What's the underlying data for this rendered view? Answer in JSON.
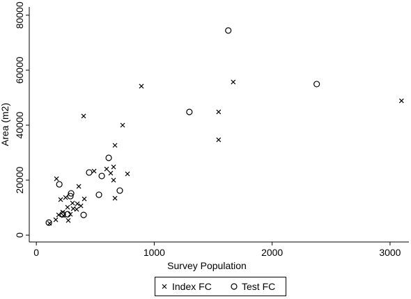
{
  "chart_data": {
    "type": "scatter",
    "xlabel": "Survey Population",
    "ylabel": "Area (m2)",
    "xlim": [
      -60,
      3160
    ],
    "ylim": [
      -2500,
      83000
    ],
    "xticks": [
      0,
      1000,
      2000,
      3000
    ],
    "yticks": [
      0,
      20000,
      40000,
      60000,
      80000
    ],
    "grid": false,
    "legend": "bottom",
    "series": [
      {
        "name": "Index FC",
        "color": "#000000",
        "marker": "x",
        "x": [
          891,
          1670,
          3097,
          1546,
          1546,
          401,
          732,
          667,
          171,
          360,
          655,
          596,
          631,
          490,
          773,
          655,
          667,
          206,
          248,
          407,
          307,
          348,
          313,
          265,
          342,
          224,
          189,
          230,
          289,
          271,
          165,
          112,
          378
        ],
        "values": [
          54177,
          55700,
          48860,
          44810,
          34680,
          43290,
          40000,
          32660,
          20500,
          17720,
          24810,
          24050,
          22530,
          23290,
          22280,
          20000,
          13420,
          12910,
          13670,
          13160,
          11650,
          11390,
          9620,
          10130,
          9370,
          8350,
          7340,
          7090,
          7590,
          5320,
          5570,
          4300,
          10630
        ]
      },
      {
        "name": "Test FC",
        "color": "#000000",
        "marker": "circle",
        "x": [
          1628,
          2378,
          1298,
          614,
          448,
          555,
          195,
          708,
          531,
          295,
          289,
          401,
          224,
          265,
          106
        ],
        "values": [
          74430,
          54940,
          44810,
          28100,
          22780,
          21520,
          18480,
          16200,
          14680,
          15190,
          14180,
          7340,
          7590,
          7590,
          4560
        ]
      }
    ]
  }
}
